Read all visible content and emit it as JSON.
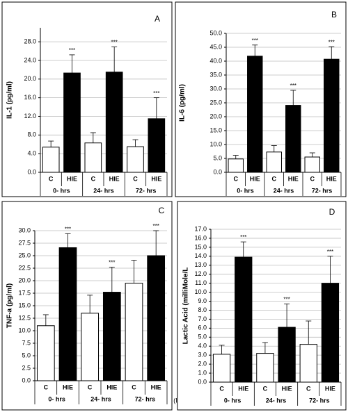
{
  "chart_data": [
    {
      "type": "bar",
      "panel_label": "A",
      "y_label": "IL-1  (pg/ml)",
      "categories": [
        "C",
        "HIE",
        "C",
        "HIE",
        "C",
        "HIE"
      ],
      "groups": [
        "0- hrs",
        "24- hrs",
        "72- hrs"
      ],
      "values": [
        5.4,
        21.3,
        6.3,
        21.5,
        5.5,
        11.5
      ],
      "errors": [
        1.3,
        3.9,
        2.2,
        5.4,
        1.5,
        4.5
      ],
      "colors": [
        "#ffffff",
        "#000000",
        "#ffffff",
        "#000000",
        "#ffffff",
        "#000000"
      ],
      "annotations": [
        null,
        "***",
        null,
        "***",
        null,
        "***"
      ],
      "ylim": [
        0,
        31
      ],
      "yticks": [
        {
          "value": 0,
          "label": "0.0"
        },
        {
          "value": 4,
          "label": "4.0"
        },
        {
          "value": 8,
          "label": "8.0"
        },
        {
          "value": 12,
          "label": "12.0"
        },
        {
          "value": 16,
          "label": "16.0"
        },
        {
          "value": 20,
          "label": "20.0"
        },
        {
          "value": 24,
          "label": "24.0"
        },
        {
          "value": 28,
          "label": "28.0"
        }
      ],
      "grid": true
    },
    {
      "type": "bar",
      "panel_label": "B",
      "y_label": "IL-6  (pg/ml)",
      "categories": [
        "C",
        "HIE",
        "C",
        "HIE",
        "C",
        "HIE"
      ],
      "groups": [
        "0- hrs",
        "24- hrs",
        "72- hrs"
      ],
      "values": [
        4.8,
        41.8,
        7.3,
        24.1,
        5.5,
        40.7
      ],
      "errors": [
        1.3,
        4.0,
        2.3,
        5.4,
        1.5,
        4.5
      ],
      "colors": [
        "#ffffff",
        "#000000",
        "#ffffff",
        "#000000",
        "#ffffff",
        "#000000"
      ],
      "annotations": [
        null,
        "***",
        null,
        "***",
        null,
        "***"
      ],
      "ylim": [
        0,
        50
      ],
      "yticks": [
        {
          "value": 0,
          "label": "0.0"
        },
        {
          "value": 5,
          "label": "5.0"
        },
        {
          "value": 10,
          "label": "10.0"
        },
        {
          "value": 15,
          "label": "15.0"
        },
        {
          "value": 20,
          "label": "20.0"
        },
        {
          "value": 25,
          "label": "25.0"
        },
        {
          "value": 30,
          "label": "30.0"
        },
        {
          "value": 35,
          "label": "35.0"
        },
        {
          "value": 40,
          "label": "40.0"
        },
        {
          "value": 45,
          "label": "45.0"
        },
        {
          "value": 50,
          "label": "50.0"
        }
      ],
      "grid": true
    },
    {
      "type": "bar",
      "panel_label": "C",
      "y_label": "TNF-a  (pg/ml)",
      "categories": [
        "C",
        "HIE",
        "C",
        "HIE",
        "C",
        "HIE"
      ],
      "groups": [
        "0- hrs",
        "24- hrs",
        "72- hrs"
      ],
      "values": [
        11.0,
        26.6,
        13.5,
        17.7,
        19.5,
        25.0
      ],
      "errors": [
        2.2,
        2.8,
        3.6,
        5.0,
        4.6,
        5.0
      ],
      "colors": [
        "#ffffff",
        "#000000",
        "#ffffff",
        "#000000",
        "#ffffff",
        "#000000"
      ],
      "annotations": [
        null,
        "***",
        null,
        "***",
        null,
        "***"
      ],
      "ylim": [
        0,
        30
      ],
      "yticks": [
        {
          "value": 0,
          "label": "0.0"
        },
        {
          "value": 2.5,
          "label": "2.5"
        },
        {
          "value": 5,
          "label": "5.0"
        },
        {
          "value": 7.5,
          "label": "7.5"
        },
        {
          "value": 10,
          "label": "10.0"
        },
        {
          "value": 12.5,
          "label": "12.5"
        },
        {
          "value": 15,
          "label": "15.0"
        },
        {
          "value": 17.5,
          "label": "17.5"
        },
        {
          "value": 20,
          "label": "20.0"
        },
        {
          "value": 22.5,
          "label": "22.5"
        },
        {
          "value": 25,
          "label": "25.0"
        },
        {
          "value": 27.5,
          "label": "27.5"
        },
        {
          "value": 30,
          "label": "30.0"
        }
      ],
      "grid": true
    },
    {
      "type": "bar",
      "panel_label": "D",
      "y_label": "Lactic Acid (milliMole/L",
      "categories": [
        "C",
        "HIE",
        "C",
        "HIE",
        "C",
        "HIE"
      ],
      "groups": [
        "0- hrs",
        "24- hrs",
        "72- hrs"
      ],
      "values": [
        3.1,
        13.9,
        3.2,
        6.1,
        4.2,
        11.0
      ],
      "errors": [
        1.0,
        1.7,
        1.2,
        2.6,
        2.6,
        3.0
      ],
      "colors": [
        "#ffffff",
        "#000000",
        "#ffffff",
        "#000000",
        "#ffffff",
        "#000000"
      ],
      "annotations": [
        null,
        "***",
        null,
        "***",
        null,
        "***"
      ],
      "ylim": [
        0,
        17
      ],
      "yticks": [
        {
          "value": 0,
          "label": "0.0"
        },
        {
          "value": 1,
          "label": "1.0"
        },
        {
          "value": 2,
          "label": "2.0"
        },
        {
          "value": 3,
          "label": "3.0"
        },
        {
          "value": 4,
          "label": "4.0"
        },
        {
          "value": 5,
          "label": "5.0"
        },
        {
          "value": 6,
          "label": "6.0"
        },
        {
          "value": 7,
          "label": "7.0"
        },
        {
          "value": 8,
          "label": "8.0"
        },
        {
          "value": 9,
          "label": "9.0"
        },
        {
          "value": 10,
          "label": "10.0"
        },
        {
          "value": 11,
          "label": "11.0"
        },
        {
          "value": 12,
          "label": "12.0"
        },
        {
          "value": 13,
          "label": "13.0"
        },
        {
          "value": 14,
          "label": "14.0"
        },
        {
          "value": 15,
          "label": "15.0"
        },
        {
          "value": 16,
          "label": "16.0"
        },
        {
          "value": 17,
          "label": "17.0"
        }
      ],
      "grid": true
    }
  ],
  "footnote": "(I"
}
